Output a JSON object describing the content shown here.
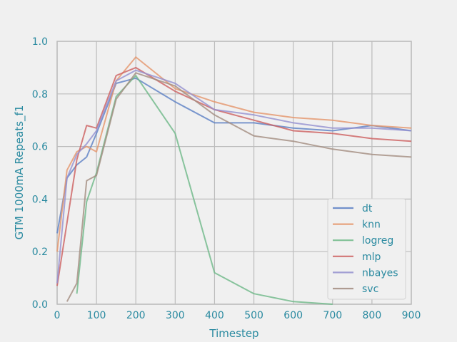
{
  "chart_data": {
    "type": "line",
    "xlabel": "Timestep",
    "ylabel": "GTM 1000mA Repeats_f1",
    "xlim": [
      0,
      900
    ],
    "ylim": [
      0,
      1.0
    ],
    "xticks": [
      0,
      100,
      200,
      300,
      400,
      500,
      600,
      700,
      800,
      900
    ],
    "yticks": [
      0.0,
      0.2,
      0.4,
      0.6,
      0.8,
      1.0
    ],
    "xtick_labels": [
      "0",
      "100",
      "200",
      "300",
      "400",
      "500",
      "600",
      "700",
      "800",
      "900"
    ],
    "ytick_labels": [
      "0.0",
      "0.2",
      "0.4",
      "0.6",
      "0.8",
      "1.0"
    ],
    "grid": true,
    "legend_position": "bottom-right",
    "series": [
      {
        "name": "dt",
        "color": "#5b7fc4",
        "x": [
          0,
          25,
          50,
          75,
          100,
          150,
          200,
          300,
          400,
          500,
          600,
          700,
          800,
          900
        ],
        "y": [
          0.27,
          0.48,
          0.53,
          0.56,
          0.65,
          0.84,
          0.86,
          0.77,
          0.69,
          0.69,
          0.67,
          0.66,
          0.68,
          0.66
        ]
      },
      {
        "name": "knn",
        "color": "#e5956a",
        "x": [
          0,
          25,
          50,
          75,
          100,
          150,
          200,
          300,
          400,
          500,
          600,
          700,
          800,
          900
        ],
        "y": [
          0.2,
          0.51,
          0.58,
          0.6,
          0.58,
          0.85,
          0.94,
          0.82,
          0.77,
          0.73,
          0.71,
          0.7,
          0.68,
          0.67
        ]
      },
      {
        "name": "logreg",
        "color": "#6db887",
        "x": [
          50,
          75,
          100,
          150,
          200,
          300,
          400,
          500,
          600,
          700
        ],
        "y": [
          0.04,
          0.39,
          0.5,
          0.79,
          0.87,
          0.65,
          0.12,
          0.04,
          0.01,
          0.0
        ]
      },
      {
        "name": "mlp",
        "color": "#cd5f5f",
        "x": [
          0,
          25,
          50,
          75,
          100,
          150,
          200,
          300,
          400,
          500,
          600,
          700,
          800,
          900
        ],
        "y": [
          0.07,
          0.31,
          0.55,
          0.68,
          0.67,
          0.87,
          0.9,
          0.81,
          0.74,
          0.7,
          0.66,
          0.65,
          0.63,
          0.62
        ]
      },
      {
        "name": "nbayes",
        "color": "#9490cf",
        "x": [
          0,
          25,
          50,
          75,
          100,
          150,
          200,
          300,
          400,
          500,
          600,
          700,
          800,
          900
        ],
        "y": [
          0.08,
          0.48,
          0.57,
          0.61,
          0.66,
          0.85,
          0.89,
          0.84,
          0.74,
          0.72,
          0.69,
          0.67,
          0.67,
          0.66
        ]
      },
      {
        "name": "svc",
        "color": "#a28c80",
        "x": [
          25,
          50,
          75,
          100,
          150,
          200,
          300,
          400,
          500,
          600,
          700,
          800,
          900
        ],
        "y": [
          0.01,
          0.08,
          0.47,
          0.49,
          0.78,
          0.88,
          0.83,
          0.72,
          0.64,
          0.62,
          0.59,
          0.57,
          0.56
        ]
      }
    ]
  }
}
